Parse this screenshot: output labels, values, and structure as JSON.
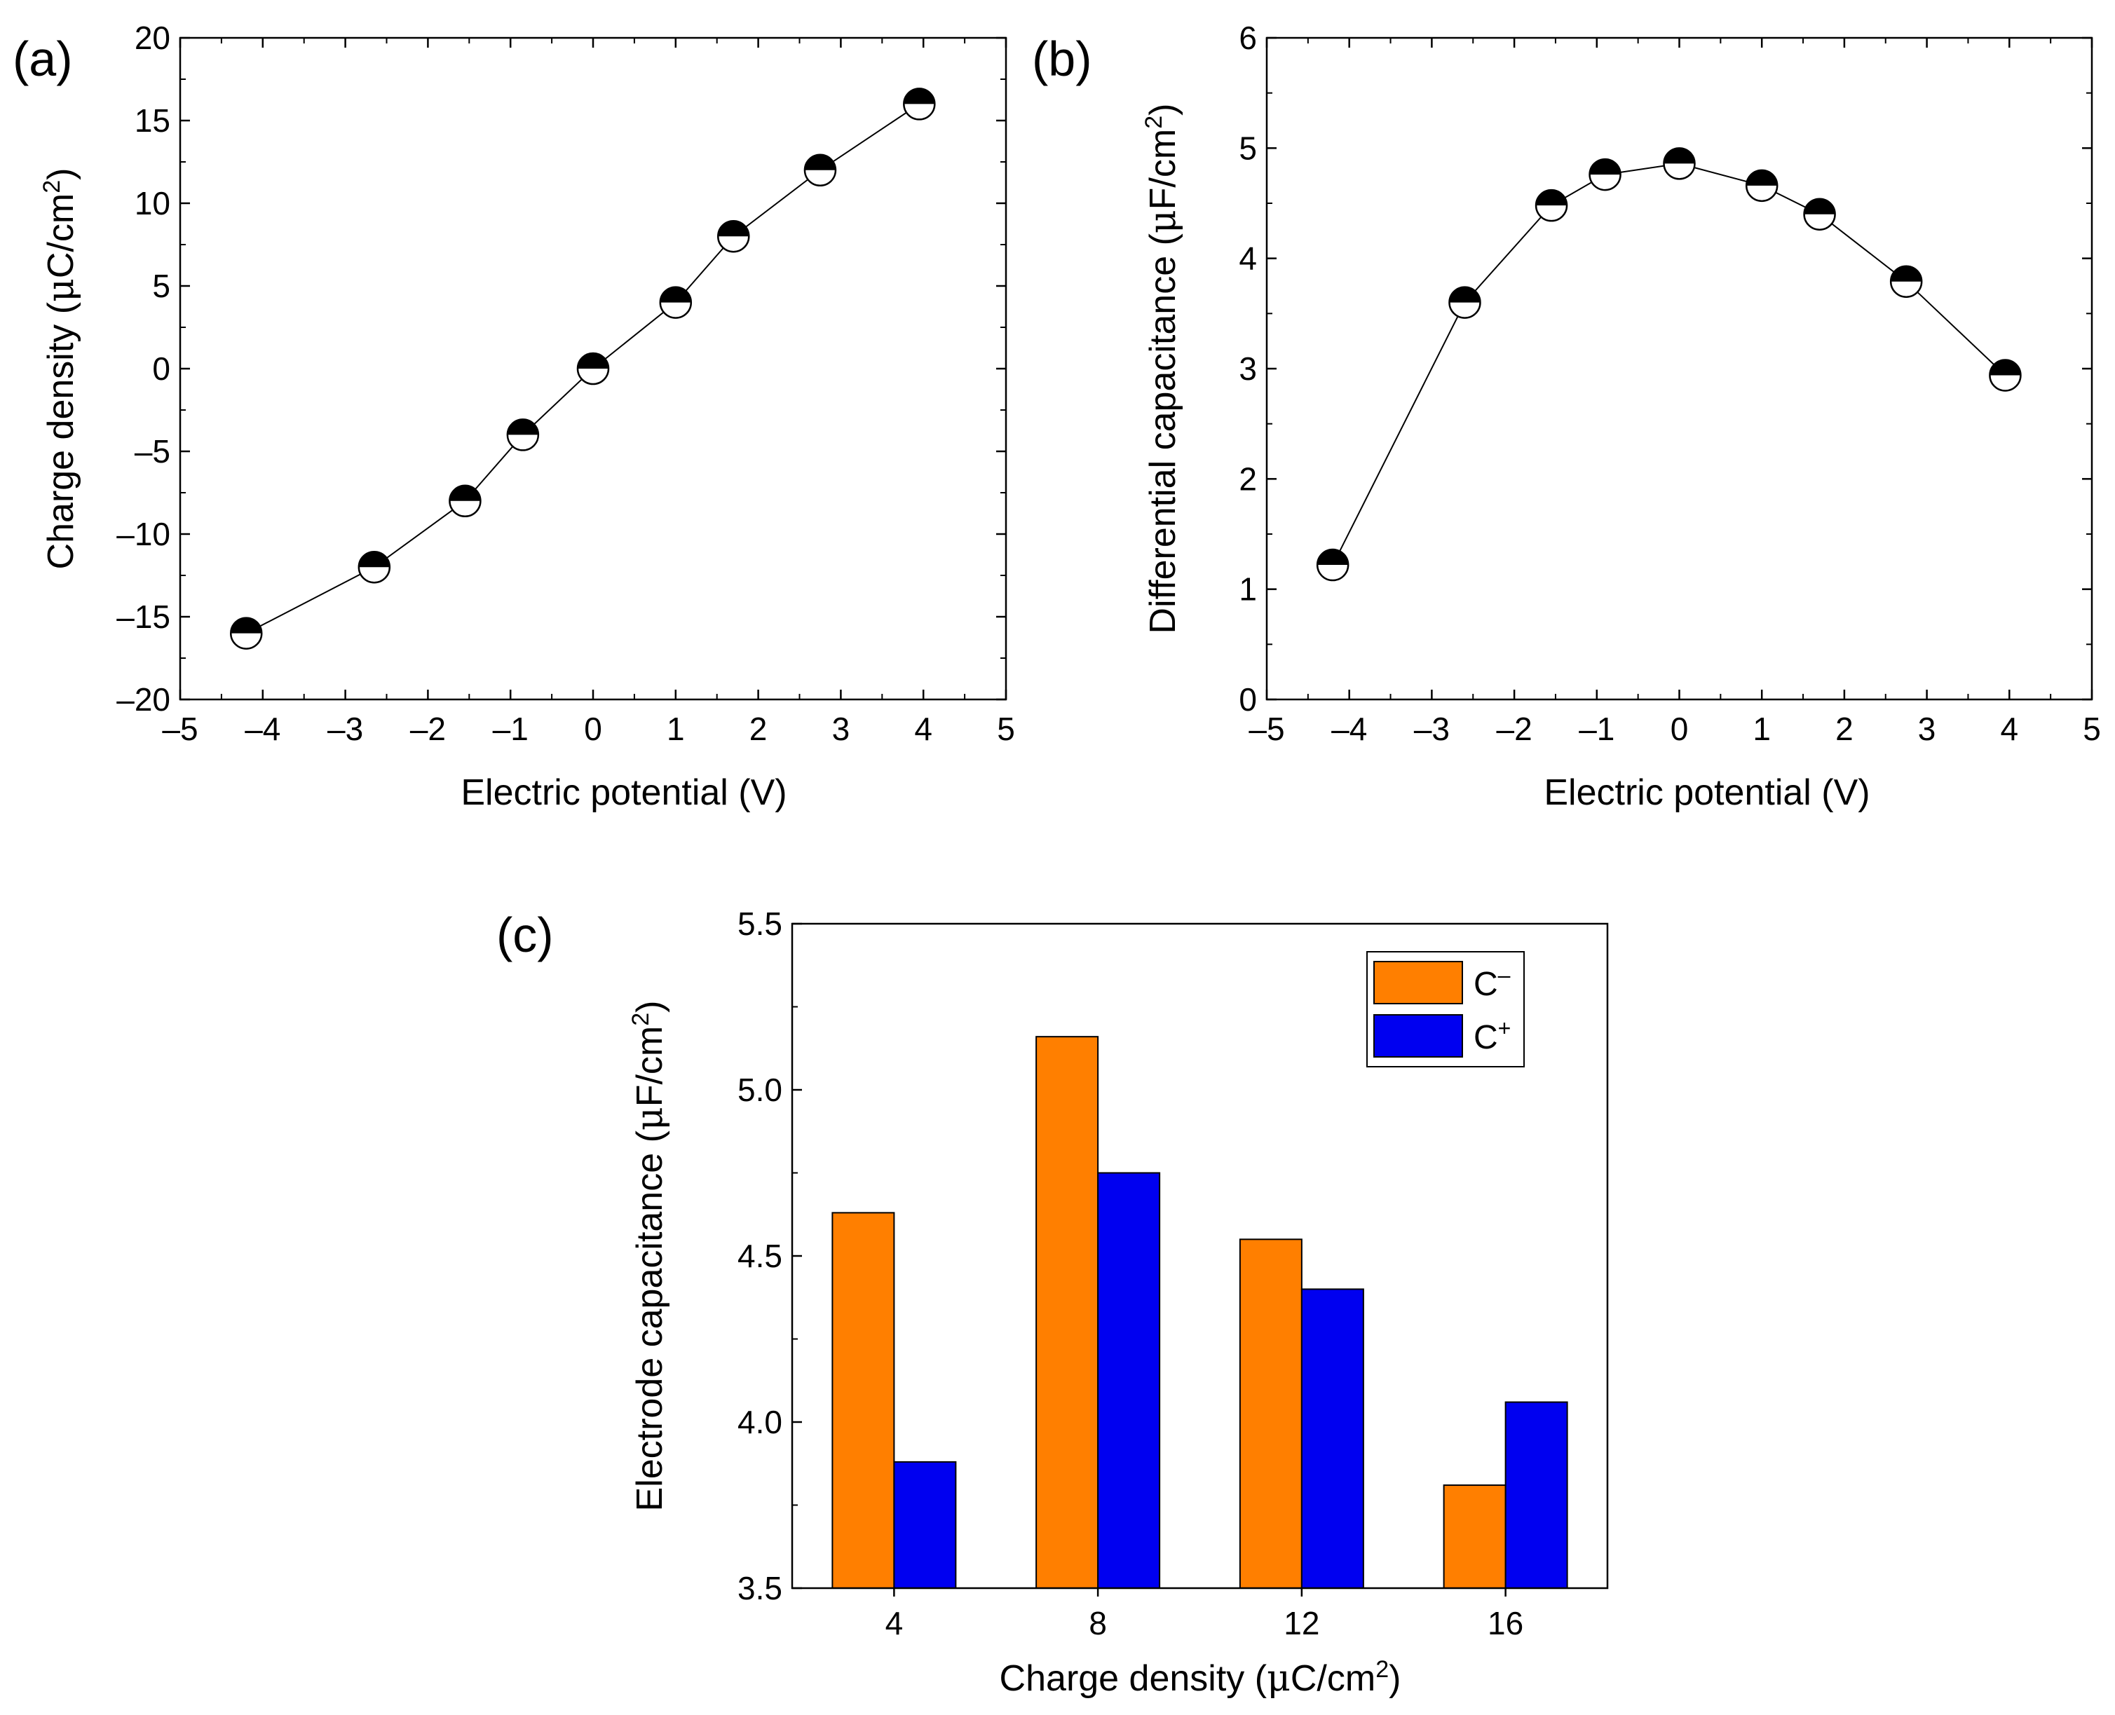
{
  "chart_data": [
    {
      "panel": "(a)",
      "type": "line",
      "marker": "half-filled circle",
      "xlabel": "Electric potential (V)",
      "ylabel_main": "Charge density (",
      "ylabel_mu": "μ",
      "ylabel_unit": "C/cm",
      "ylabel_sup": "2",
      "ylabel_end": ")",
      "xlim": [
        -5,
        5
      ],
      "ylim": [
        -20,
        20
      ],
      "xticks": [
        -5,
        -4,
        -3,
        -2,
        -1,
        0,
        1,
        2,
        3,
        4,
        5
      ],
      "xtick_labels": [
        "–5",
        "–4",
        "–3",
        "–2",
        "–1",
        "0",
        "1",
        "2",
        "3",
        "4",
        "5"
      ],
      "yticks": [
        -20,
        -15,
        -10,
        -5,
        0,
        5,
        10,
        15,
        20
      ],
      "ytick_labels": [
        "–20",
        "–15",
        "–10",
        "–5",
        "0",
        "5",
        "10",
        "15",
        "20"
      ],
      "series": [
        {
          "name": "charge density",
          "x": [
            -4.2,
            -2.65,
            -1.55,
            -0.85,
            0,
            1.0,
            1.7,
            2.75,
            3.95
          ],
          "y": [
            -16,
            -12,
            -8,
            -4,
            0,
            4,
            8,
            12,
            16
          ]
        }
      ]
    },
    {
      "panel": "(b)",
      "type": "line",
      "marker": "half-filled circle",
      "xlabel": "Electric potential (V)",
      "ylabel_main": "Differential capacitance (",
      "ylabel_mu": "μ",
      "ylabel_unit": "F/cm",
      "ylabel_sup": "2",
      "ylabel_end": ")",
      "xlim": [
        -5,
        5
      ],
      "ylim": [
        0,
        6
      ],
      "xticks": [
        -5,
        -4,
        -3,
        -2,
        -1,
        0,
        1,
        2,
        3,
        4,
        5
      ],
      "xtick_labels": [
        "–5",
        "–4",
        "–3",
        "–2",
        "–1",
        "0",
        "1",
        "2",
        "3",
        "4",
        "5"
      ],
      "yticks": [
        0,
        1,
        2,
        3,
        4,
        5,
        6
      ],
      "ytick_labels": [
        "0",
        "1",
        "2",
        "3",
        "4",
        "5",
        "6"
      ],
      "series": [
        {
          "name": "differential capacitance",
          "x": [
            -4.2,
            -2.6,
            -1.55,
            -0.9,
            0,
            1.0,
            1.7,
            2.75,
            3.95
          ],
          "y": [
            1.22,
            3.6,
            4.48,
            4.76,
            4.86,
            4.66,
            4.4,
            3.79,
            2.94
          ]
        }
      ]
    },
    {
      "panel": "(c)",
      "type": "bar",
      "xlabel_main": "Charge density (",
      "xlabel_mu": "μ",
      "xlabel_unit": "C/cm",
      "xlabel_sup": "2",
      "xlabel_end": ")",
      "ylabel_main": "Electrode capacitance (",
      "ylabel_mu": "μ",
      "ylabel_unit": "F/cm",
      "ylabel_sup": "2",
      "ylabel_end": ")",
      "categories": [
        "4",
        "8",
        "12",
        "16"
      ],
      "ylim": [
        3.5,
        5.5
      ],
      "yticks": [
        3.5,
        4.0,
        4.5,
        5.0,
        5.5
      ],
      "ytick_labels": [
        "3.5",
        "4.0",
        "4.5",
        "5.0",
        "5.5"
      ],
      "legend_position": "top-right",
      "series": [
        {
          "name": "C",
          "sup": "–",
          "color": "#FF7F00",
          "values": [
            4.63,
            5.16,
            4.55,
            3.81
          ]
        },
        {
          "name": "C",
          "sup": "+",
          "color": "#0000F0",
          "values": [
            3.88,
            4.75,
            4.4,
            4.06
          ]
        }
      ]
    }
  ]
}
